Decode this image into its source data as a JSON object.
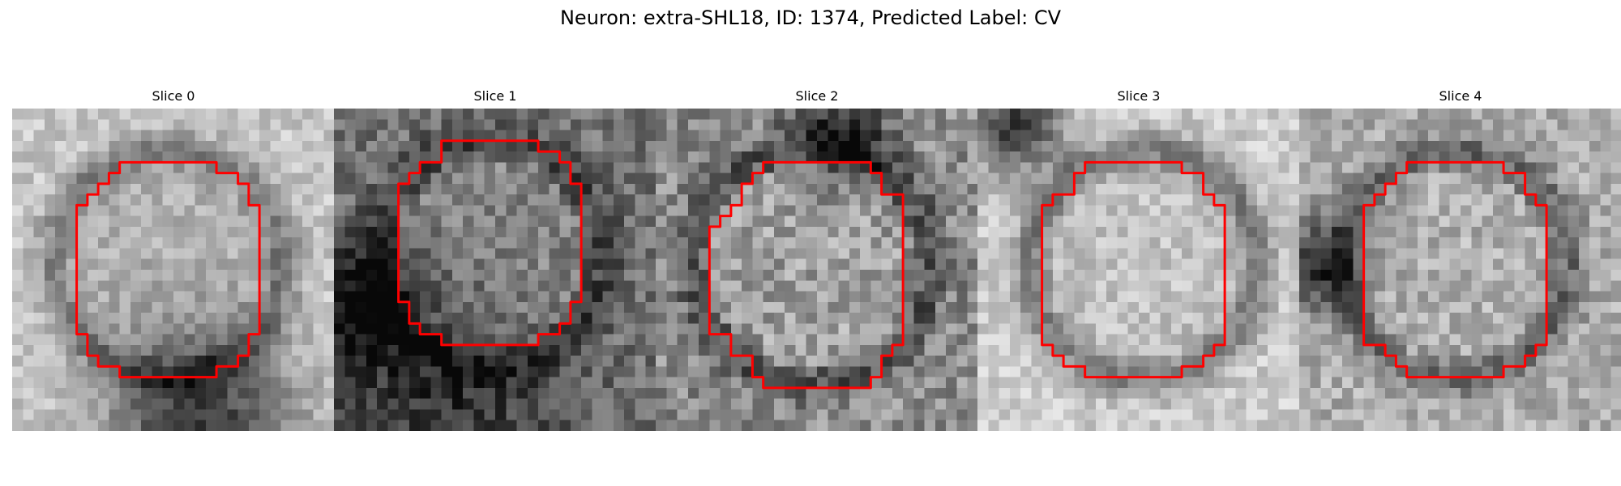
{
  "figure": {
    "title": "Neuron: extra-SHL18, ID: 1374, Predicted Label: CV"
  },
  "slices": [
    {
      "label": "Slice 0"
    },
    {
      "label": "Slice 1"
    },
    {
      "label": "Slice 2"
    },
    {
      "label": "Slice 3"
    },
    {
      "label": "Slice 4"
    }
  ],
  "colors": {
    "contour": "#ff0000",
    "background": "#ffffff"
  }
}
